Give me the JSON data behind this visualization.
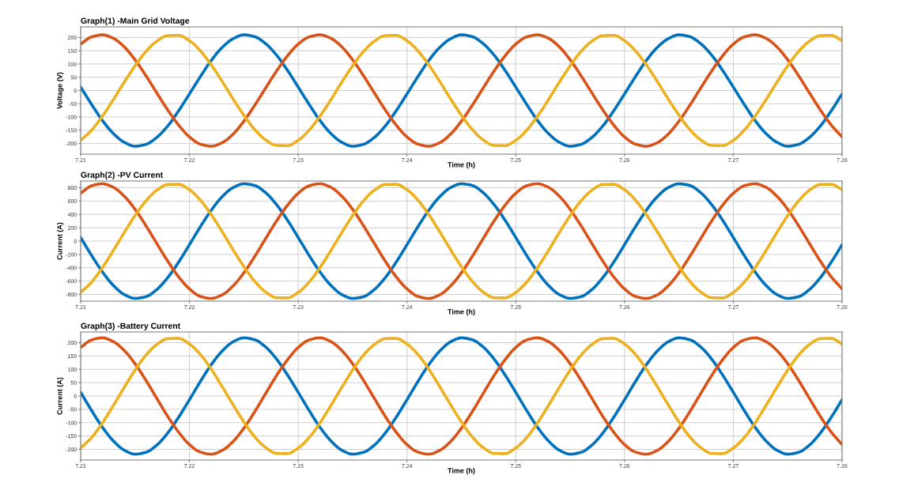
{
  "chart_data": [
    {
      "type": "line",
      "title": "Graph(1) -Main Grid Voltage",
      "xlabel": "Time (h)",
      "ylabel": "Voltage (V)",
      "xlim": [
        7.21,
        7.28
      ],
      "xticks": [
        7.21,
        7.22,
        7.23,
        7.24,
        7.25,
        7.26,
        7.27,
        7.28
      ],
      "ylim": [
        -240,
        240
      ],
      "yticks": [
        -200,
        -150,
        -100,
        -50,
        0,
        50,
        100,
        150,
        200
      ],
      "grid": true,
      "marker": "none",
      "line_style": "solid",
      "x": [
        7.21,
        7.211,
        7.212,
        7.213,
        7.214,
        7.215,
        7.216,
        7.217,
        7.218,
        7.219,
        7.22,
        7.221,
        7.222,
        7.223,
        7.224,
        7.225,
        7.226,
        7.227,
        7.228,
        7.229,
        7.23,
        7.231,
        7.232,
        7.233,
        7.234,
        7.235,
        7.236,
        7.237,
        7.238,
        7.239,
        7.24,
        7.241,
        7.242,
        7.243,
        7.244,
        7.245,
        7.246,
        7.247,
        7.248,
        7.249,
        7.25,
        7.251,
        7.252,
        7.253,
        7.254,
        7.255,
        7.256,
        7.257,
        7.258,
        7.259,
        7.26,
        7.261,
        7.262,
        7.263,
        7.264,
        7.265,
        7.266,
        7.267,
        7.268,
        7.269,
        7.27,
        7.271,
        7.272,
        7.273,
        7.274,
        7.275,
        7.276,
        7.277,
        7.278,
        7.279,
        7.28
      ],
      "series": [
        {
          "color": "#0072bd",
          "values": [
            13,
            -52,
            -113,
            -162,
            -195,
            -210,
            -203,
            -177,
            -134,
            -77,
            -13,
            52,
            113,
            162,
            195,
            210,
            203,
            177,
            134,
            77,
            13,
            -52,
            -113,
            -162,
            -195,
            -210,
            -203,
            -177,
            -134,
            -77,
            -13,
            52,
            113,
            162,
            195,
            210,
            203,
            177,
            134,
            77,
            13,
            -52,
            -113,
            -162,
            -195,
            -210,
            -203,
            -177,
            -134,
            -77,
            -13,
            52,
            113,
            162,
            195,
            210,
            203,
            177,
            134,
            77,
            13,
            -52,
            -113,
            -162,
            -195,
            -210,
            -203,
            -177,
            -134,
            -77,
            -13
          ]
        },
        {
          "color": "#d95319",
          "values": [
            175,
            202,
            210,
            197,
            165,
            116,
            56,
            -9,
            -73,
            -130,
            -175,
            -202,
            -210,
            -197,
            -165,
            -116,
            -56,
            9,
            73,
            130,
            175,
            202,
            210,
            197,
            165,
            116,
            56,
            -9,
            -73,
            -130,
            -175,
            -202,
            -210,
            -197,
            -165,
            -116,
            -56,
            9,
            73,
            130,
            175,
            202,
            210,
            197,
            165,
            116,
            56,
            -9,
            -73,
            -130,
            -175,
            -202,
            -210,
            -197,
            -165,
            -116,
            -56,
            9,
            73,
            130,
            175,
            202,
            210,
            197,
            165,
            116,
            56,
            -9,
            -73,
            -130,
            -175
          ]
        },
        {
          "color": "#edb120",
          "values": [
            -188,
            -150,
            -97,
            -35,
            31,
            93,
            147,
            186,
            207,
            208,
            188,
            150,
            97,
            35,
            -31,
            -93,
            -147,
            -186,
            -207,
            -208,
            -188,
            -150,
            -97,
            -35,
            31,
            93,
            147,
            186,
            207,
            208,
            188,
            150,
            97,
            35,
            -31,
            -93,
            -147,
            -186,
            -207,
            -208,
            -188,
            -150,
            -97,
            -35,
            31,
            93,
            147,
            186,
            207,
            208,
            188,
            150,
            97,
            35,
            -31,
            -93,
            -147,
            -186,
            -207,
            -208,
            -188,
            -150,
            -97,
            -35,
            31,
            93,
            147,
            186,
            207,
            208,
            188
          ]
        }
      ]
    },
    {
      "type": "line",
      "title": "Graph(2) -PV Current",
      "xlabel": "Time (h)",
      "ylabel": "Current (A)",
      "xlim": [
        7.21,
        7.28
      ],
      "xticks": [
        7.21,
        7.22,
        7.23,
        7.24,
        7.25,
        7.26,
        7.27,
        7.28
      ],
      "ylim": [
        -900,
        900
      ],
      "yticks": [
        -800,
        -600,
        -400,
        -200,
        0,
        200,
        400,
        600,
        800
      ],
      "grid": true,
      "marker": "none",
      "line_style": "solid",
      "x": [
        7.21,
        7.211,
        7.212,
        7.213,
        7.214,
        7.215,
        7.216,
        7.217,
        7.218,
        7.219,
        7.22,
        7.221,
        7.222,
        7.223,
        7.224,
        7.225,
        7.226,
        7.227,
        7.228,
        7.229,
        7.23,
        7.231,
        7.232,
        7.233,
        7.234,
        7.235,
        7.236,
        7.237,
        7.238,
        7.239,
        7.24,
        7.241,
        7.242,
        7.243,
        7.244,
        7.245,
        7.246,
        7.247,
        7.248,
        7.249,
        7.25,
        7.251,
        7.252,
        7.253,
        7.254,
        7.255,
        7.256,
        7.257,
        7.258,
        7.259,
        7.26,
        7.261,
        7.262,
        7.263,
        7.264,
        7.265,
        7.266,
        7.267,
        7.268,
        7.269,
        7.27,
        7.271,
        7.272,
        7.273,
        7.274,
        7.275,
        7.276,
        7.277,
        7.278,
        7.279,
        7.28
      ],
      "series": [
        {
          "color": "#0072bd",
          "values": [
            54,
            -214,
            -461,
            -663,
            -800,
            -858,
            -833,
            -726,
            -548,
            -317,
            -54,
            214,
            461,
            663,
            800,
            858,
            833,
            726,
            548,
            317,
            54,
            -214,
            -461,
            -663,
            -800,
            -858,
            -833,
            -726,
            -548,
            -317,
            -54,
            214,
            461,
            663,
            800,
            858,
            833,
            726,
            548,
            317,
            54,
            -214,
            -461,
            -663,
            -800,
            -858,
            -833,
            -726,
            -548,
            -317,
            -54,
            214,
            461,
            663,
            800,
            858,
            833,
            726,
            548,
            317,
            54,
            -214,
            -461,
            -663,
            -800,
            -858,
            -833,
            -726,
            -548,
            -317,
            -54
          ]
        },
        {
          "color": "#d95319",
          "values": [
            716,
            828,
            859,
            806,
            674,
            476,
            231,
            -36,
            -300,
            -534,
            -716,
            -828,
            -859,
            -806,
            -674,
            -476,
            -231,
            36,
            300,
            534,
            716,
            828,
            859,
            806,
            674,
            476,
            231,
            -36,
            -300,
            -534,
            -716,
            -828,
            -859,
            -806,
            -674,
            -476,
            -231,
            36,
            300,
            534,
            716,
            828,
            859,
            806,
            674,
            476,
            231,
            -36,
            -300,
            -534,
            -716,
            -828,
            -859,
            -806,
            -674,
            -476,
            -231,
            36,
            300,
            534,
            716,
            828,
            859,
            806,
            674,
            476,
            231,
            -36,
            -300,
            -534,
            -716
          ]
        },
        {
          "color": "#edb120",
          "values": [
            -770,
            -615,
            -398,
            -143,
            126,
            382,
            602,
            762,
            848,
            851,
            770,
            615,
            398,
            143,
            -126,
            -382,
            -602,
            -762,
            -848,
            -851,
            -770,
            -615,
            -398,
            -143,
            126,
            382,
            602,
            762,
            848,
            851,
            770,
            615,
            398,
            143,
            -126,
            -382,
            -602,
            -762,
            -848,
            -851,
            -770,
            -615,
            -398,
            -143,
            126,
            382,
            602,
            762,
            848,
            851,
            770,
            615,
            398,
            143,
            -126,
            -382,
            -602,
            -762,
            -848,
            -851,
            -770,
            -615,
            -398,
            -143,
            126,
            382,
            602,
            762,
            848,
            851,
            770
          ]
        }
      ]
    },
    {
      "type": "line",
      "title": "Graph(3) -Battery Current",
      "xlabel": "Time (h)",
      "ylabel": "Current (A)",
      "xlim": [
        7.21,
        7.28
      ],
      "xticks": [
        7.21,
        7.22,
        7.23,
        7.24,
        7.25,
        7.26,
        7.27,
        7.28
      ],
      "ylim": [
        -240,
        240
      ],
      "yticks": [
        -200,
        -150,
        -100,
        -50,
        0,
        50,
        100,
        150,
        200
      ],
      "grid": true,
      "marker": "none",
      "line_style": "solid",
      "x": [
        7.21,
        7.211,
        7.212,
        7.213,
        7.214,
        7.215,
        7.216,
        7.217,
        7.218,
        7.219,
        7.22,
        7.221,
        7.222,
        7.223,
        7.224,
        7.225,
        7.226,
        7.227,
        7.228,
        7.229,
        7.23,
        7.231,
        7.232,
        7.233,
        7.234,
        7.235,
        7.236,
        7.237,
        7.238,
        7.239,
        7.24,
        7.241,
        7.242,
        7.243,
        7.244,
        7.245,
        7.246,
        7.247,
        7.248,
        7.249,
        7.25,
        7.251,
        7.252,
        7.253,
        7.254,
        7.255,
        7.256,
        7.257,
        7.258,
        7.259,
        7.26,
        7.261,
        7.262,
        7.263,
        7.264,
        7.265,
        7.266,
        7.267,
        7.268,
        7.269,
        7.27,
        7.271,
        7.272,
        7.273,
        7.274,
        7.275,
        7.276,
        7.277,
        7.278,
        7.279,
        7.28
      ],
      "series": [
        {
          "color": "#0072bd",
          "values": [
            14,
            -54,
            -117,
            -168,
            -203,
            -218,
            -211,
            -184,
            -139,
            -80,
            -14,
            54,
            117,
            168,
            203,
            218,
            211,
            184,
            139,
            80,
            14,
            -54,
            -117,
            -168,
            -203,
            -218,
            -211,
            -184,
            -139,
            -80,
            -14,
            54,
            117,
            168,
            203,
            218,
            211,
            184,
            139,
            80,
            14,
            -54,
            -117,
            -168,
            -203,
            -218,
            -211,
            -184,
            -139,
            -80,
            -14,
            54,
            117,
            168,
            203,
            218,
            211,
            184,
            139,
            80,
            14,
            -54,
            -117,
            -168,
            -203,
            -218,
            -211,
            -184,
            -139,
            -80,
            -14
          ]
        },
        {
          "color": "#d95319",
          "values": [
            182,
            210,
            218,
            204,
            171,
            121,
            59,
            -9,
            -76,
            -135,
            -182,
            -210,
            -218,
            -204,
            -171,
            -121,
            -59,
            9,
            76,
            135,
            182,
            210,
            218,
            204,
            171,
            121,
            59,
            -9,
            -76,
            -135,
            -182,
            -210,
            -218,
            -204,
            -171,
            -121,
            -59,
            9,
            76,
            135,
            182,
            210,
            218,
            204,
            171,
            121,
            59,
            -9,
            -76,
            -135,
            -182,
            -210,
            -218,
            -204,
            -171,
            -121,
            -59,
            9,
            76,
            135,
            182,
            210,
            218,
            204,
            171,
            121,
            59,
            -9,
            -76,
            -135,
            -182
          ]
        },
        {
          "color": "#edb120",
          "values": [
            -195,
            -156,
            -101,
            -36,
            32,
            97,
            153,
            193,
            215,
            216,
            195,
            156,
            101,
            36,
            -32,
            -97,
            -153,
            -193,
            -215,
            -216,
            -195,
            -156,
            -101,
            -36,
            32,
            97,
            153,
            193,
            215,
            216,
            195,
            156,
            101,
            36,
            -32,
            -97,
            -153,
            -193,
            -215,
            -216,
            -195,
            -156,
            -101,
            -36,
            32,
            97,
            153,
            193,
            215,
            216,
            195,
            156,
            101,
            36,
            -32,
            -97,
            -153,
            -193,
            -215,
            -216,
            -195,
            -156,
            -101,
            -36,
            32,
            97,
            153,
            193,
            215,
            216,
            195
          ]
        }
      ]
    }
  ]
}
